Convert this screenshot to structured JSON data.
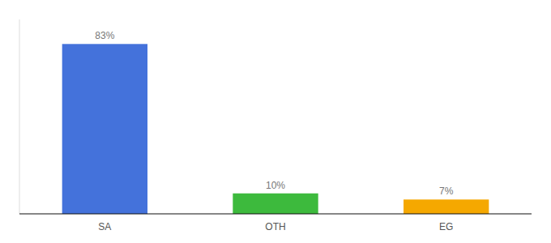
{
  "chart_data": {
    "type": "bar",
    "categories": [
      "SA",
      "OTH",
      "EG"
    ],
    "values": [
      83,
      10,
      7
    ],
    "value_labels": [
      "83%",
      "10%",
      "7%"
    ],
    "data_labels": true,
    "colors": [
      "#4472db",
      "#3dba3d",
      "#f5a800"
    ],
    "ylim": [
      0,
      95
    ],
    "grid": false,
    "tick_labels": "x"
  }
}
